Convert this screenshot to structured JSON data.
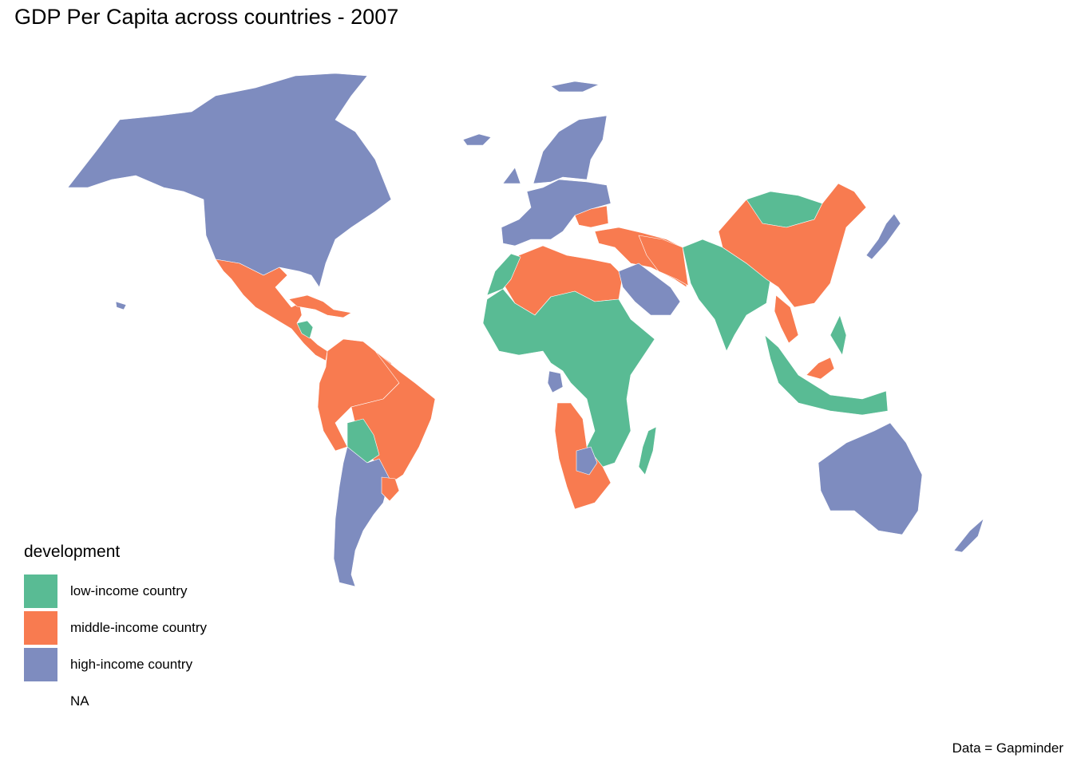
{
  "title": "GDP Per Capita across countries - 2007",
  "caption": "Data = Gapminder",
  "legend": {
    "title": "development",
    "items": [
      {
        "label": "low-income country",
        "color": "#59bb94"
      },
      {
        "label": "middle-income country",
        "color": "#f87b50"
      },
      {
        "label": "high-income country",
        "color": "#7e8cbf"
      },
      {
        "label": "NA",
        "color": "#ffffff"
      }
    ]
  },
  "map_regions": [
    {
      "name": "North America",
      "category": "high-income country"
    },
    {
      "name": "Mexico & Central America",
      "category": "middle-income country"
    },
    {
      "name": "Honduras/Nicaragua",
      "category": "low-income country"
    },
    {
      "name": "Caribbean",
      "category": "middle-income country"
    },
    {
      "name": "Northern South America",
      "category": "middle-income country"
    },
    {
      "name": "Brazil",
      "category": "middle-income country"
    },
    {
      "name": "Bolivia/Paraguay",
      "category": "low-income country"
    },
    {
      "name": "Argentina/Chile",
      "category": "high-income country"
    },
    {
      "name": "Uruguay",
      "category": "middle-income country"
    },
    {
      "name": "Western Europe",
      "category": "high-income country"
    },
    {
      "name": "Scandinavia",
      "category": "high-income country"
    },
    {
      "name": "Eastern Europe / Turkey",
      "category": "middle-income country"
    },
    {
      "name": "North Africa",
      "category": "middle-income country"
    },
    {
      "name": "Morocco",
      "category": "low-income country"
    },
    {
      "name": "Sub-Saharan Africa",
      "category": "low-income country"
    },
    {
      "name": "Gabon",
      "category": "high-income country"
    },
    {
      "name": "Angola/Namibia/South Africa",
      "category": "middle-income country"
    },
    {
      "name": "Botswana",
      "category": "high-income country"
    },
    {
      "name": "Madagascar",
      "category": "low-income country"
    },
    {
      "name": "Saudi Arabia / Gulf",
      "category": "high-income country"
    },
    {
      "name": "Iran/Iraq",
      "category": "middle-income country"
    },
    {
      "name": "South Asia",
      "category": "low-income country"
    },
    {
      "name": "Mongolia",
      "category": "low-income country"
    },
    {
      "name": "China",
      "category": "middle-income country"
    },
    {
      "name": "Thailand",
      "category": "middle-income country"
    },
    {
      "name": "Southeast Asia",
      "category": "low-income country"
    },
    {
      "name": "Malaysia",
      "category": "middle-income country"
    },
    {
      "name": "Japan",
      "category": "high-income country"
    },
    {
      "name": "Australia",
      "category": "high-income country"
    },
    {
      "name": "New Zealand",
      "category": "high-income country"
    }
  ]
}
